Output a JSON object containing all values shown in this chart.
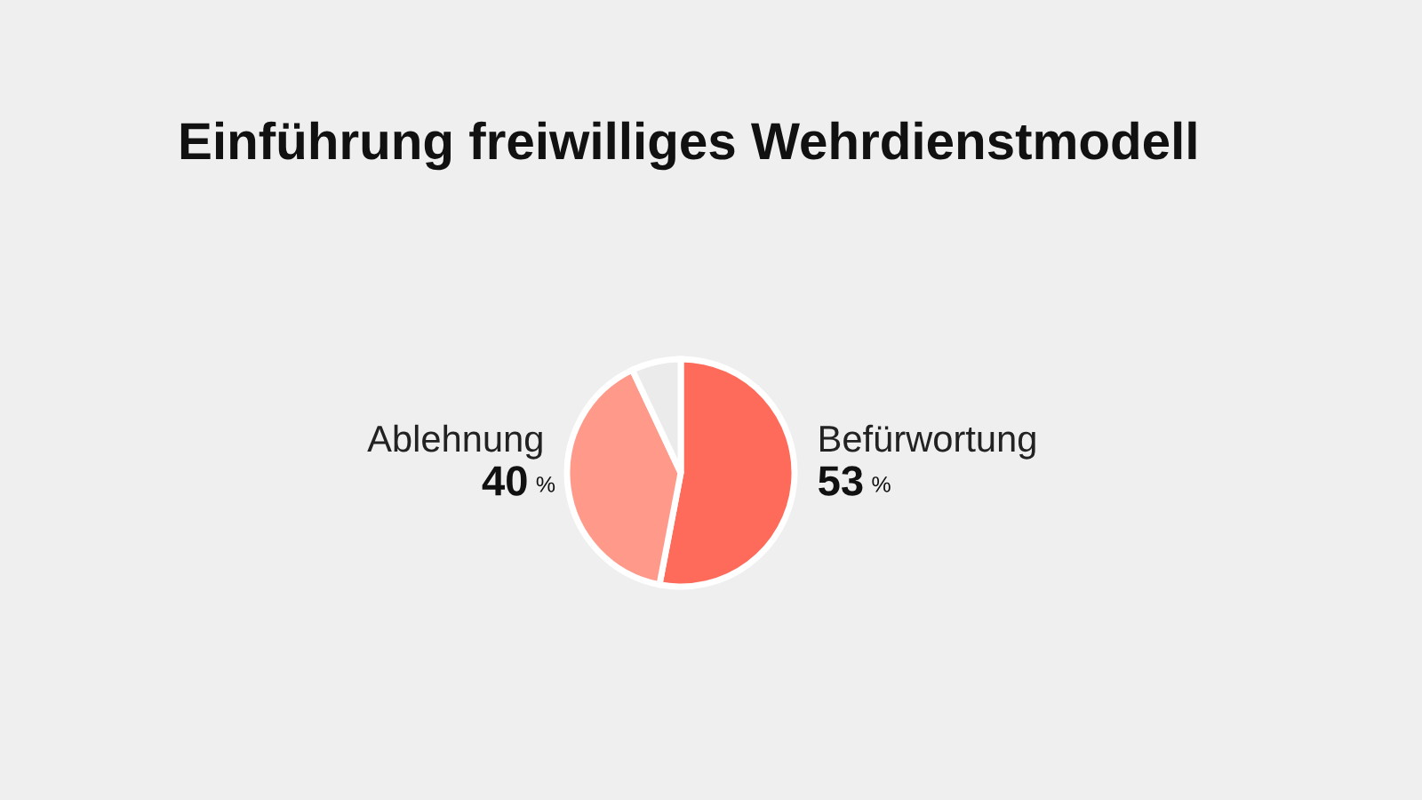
{
  "chart_data": {
    "type": "pie",
    "title": "Einführung freiwilliges Wehrdienstmodell",
    "categories": [
      "Befürwortung",
      "Ablehnung",
      null
    ],
    "values": [
      53,
      40,
      7
    ],
    "colors": [
      "#ff6b5a",
      "#ff9a8b",
      "#ebebeb"
    ],
    "value_labels": [
      "53 %",
      "40 %",
      null
    ]
  }
}
